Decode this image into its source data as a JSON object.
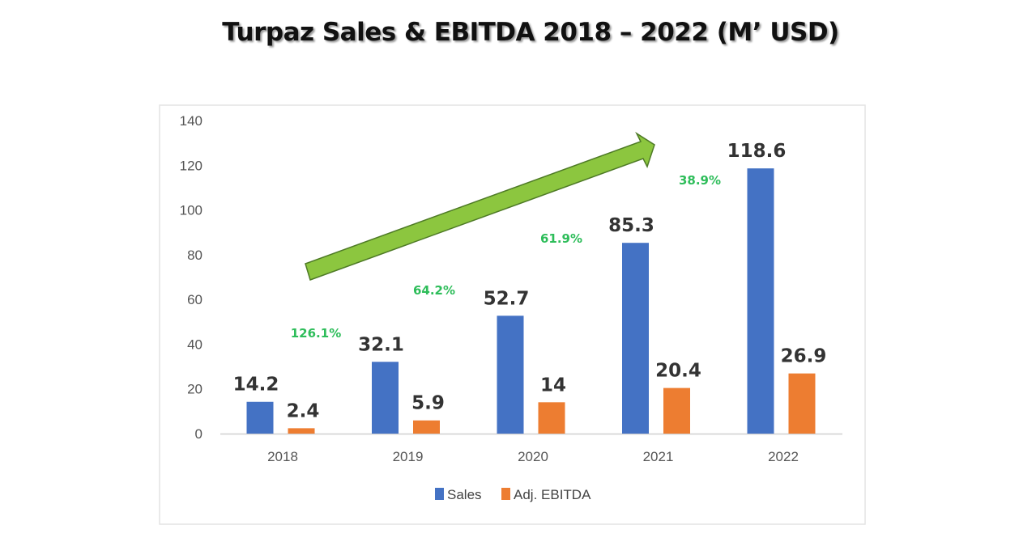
{
  "chart_data": {
    "type": "bar",
    "title": "Turpaz Sales & EBITDA 2018 – 2022 (M’ USD)",
    "categories": [
      "2018",
      "2019",
      "2020",
      "2021",
      "2022"
    ],
    "series": [
      {
        "name": "Sales",
        "values": [
          14.2,
          32.1,
          52.7,
          85.3,
          118.6
        ],
        "labels": [
          "14.2",
          "32.1",
          "52.7",
          "85.3",
          "118.6"
        ],
        "color": "#4472c4"
      },
      {
        "name": "Adj. EBITDA",
        "values": [
          2.4,
          5.9,
          14,
          20.4,
          26.9
        ],
        "labels": [
          "2.4",
          "5.9",
          "14",
          "20.4",
          "26.9"
        ],
        "color": "#ed7d31"
      }
    ],
    "growth_annotations": [
      "126.1%",
      "64.2%",
      "61.9%",
      "38.9%"
    ],
    "growth_color": "#2ebd5a",
    "arrow_color": "#8cc63f",
    "yticks": [
      "0",
      "20",
      "40",
      "60",
      "80",
      "100",
      "120",
      "140"
    ],
    "ylim": [
      0,
      140
    ],
    "grid": false,
    "legend": "bottom",
    "xlabel": "",
    "ylabel": ""
  }
}
